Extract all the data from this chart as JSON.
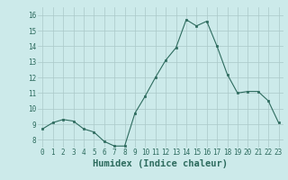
{
  "x": [
    0,
    1,
    2,
    3,
    4,
    5,
    6,
    7,
    8,
    9,
    10,
    11,
    12,
    13,
    14,
    15,
    16,
    17,
    18,
    19,
    20,
    21,
    22,
    23
  ],
  "y": [
    8.7,
    9.1,
    9.3,
    9.2,
    8.7,
    8.5,
    7.9,
    7.6,
    7.6,
    9.7,
    10.8,
    12.0,
    13.1,
    13.9,
    15.7,
    15.3,
    15.6,
    14.0,
    12.2,
    11.0,
    11.1,
    11.1,
    10.5,
    9.1
  ],
  "line_color": "#2d6b5e",
  "marker": "s",
  "marker_size": 2,
  "bg_color": "#cceaea",
  "grid_color": "#aac8c8",
  "xlabel": "Humidex (Indice chaleur)",
  "ylim": [
    7.5,
    16.5
  ],
  "xlim": [
    -0.5,
    23.5
  ],
  "yticks": [
    8,
    9,
    10,
    11,
    12,
    13,
    14,
    15,
    16
  ],
  "xticks": [
    0,
    1,
    2,
    3,
    4,
    5,
    6,
    7,
    8,
    9,
    10,
    11,
    12,
    13,
    14,
    15,
    16,
    17,
    18,
    19,
    20,
    21,
    22,
    23
  ],
  "tick_label_color": "#2d6b5e",
  "xlabel_color": "#2d6b5e",
  "tick_fontsize": 5.5,
  "xlabel_fontsize": 7.5
}
